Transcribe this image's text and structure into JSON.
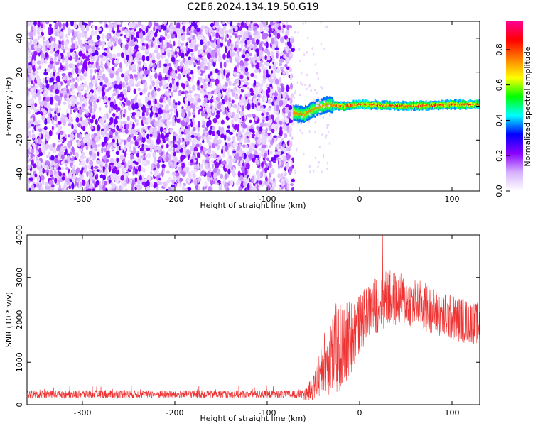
{
  "title": "C2E6.2024.134.19.50.G19",
  "chart_data": [
    {
      "type": "heatmap",
      "xlabel": "Height of straight line (km)",
      "ylabel": "Frequency (Hz)",
      "xlim": [
        -360,
        130
      ],
      "ylim": [
        -50,
        50
      ],
      "xticks": [
        -300,
        -200,
        -100,
        0,
        100
      ],
      "yticks": [
        -40,
        -20,
        0,
        20,
        40
      ],
      "colorbar": {
        "label": "Normalized spectral amplitude",
        "range": [
          0,
          0.96
        ],
        "ticks": [
          "0.0",
          "0.2",
          "0.4",
          "0.6",
          "0.8"
        ],
        "colors": [
          "#ffffff",
          "#d6b0ff",
          "#8a00ff",
          "#0000ff",
          "#00ffff",
          "#00ff00",
          "#ffff00",
          "#ff8000",
          "#ff0000",
          "#ff0090"
        ]
      },
      "regions": [
        {
          "x_range": [
            -360,
            -72
          ],
          "description_value": "noise",
          "amplitude": 0.05
        },
        {
          "x_range": [
            -72,
            130
          ],
          "frequency_track_hz": [
            [
              -72,
              -4
            ],
            [
              -60,
              -5
            ],
            [
              -48,
              -1
            ],
            [
              -35,
              1
            ],
            [
              -20,
              0
            ],
            [
              0,
              1
            ],
            [
              50,
              0
            ],
            [
              100,
              1
            ],
            [
              130,
              1
            ]
          ],
          "amplitude": 0.9
        }
      ],
      "grid": false
    },
    {
      "type": "line",
      "xlabel": "Height of straight line (km)",
      "ylabel": "SNR (10 * v/v)",
      "xlim": [
        -360,
        130
      ],
      "ylim": [
        0,
        4000
      ],
      "xticks": [
        -300,
        -200,
        -100,
        0,
        100
      ],
      "yticks": [
        0,
        1000,
        2000,
        3000,
        4000
      ],
      "color": "#ee3333",
      "envelope": {
        "x": [
          -360,
          -60,
          -50,
          -40,
          -30,
          -20,
          -10,
          0,
          10,
          20,
          30,
          40,
          50,
          60,
          70,
          80,
          90,
          100,
          110,
          120,
          130
        ],
        "mean": [
          220,
          220,
          400,
          900,
          1300,
          1300,
          1600,
          1900,
          2200,
          2400,
          2500,
          2500,
          2450,
          2400,
          2300,
          2200,
          2100,
          2050,
          2000,
          1950,
          1900
        ],
        "spread": [
          120,
          120,
          300,
          700,
          1100,
          1100,
          900,
          700,
          650,
          700,
          700,
          650,
          600,
          600,
          600,
          550,
          550,
          550,
          550,
          500,
          500
        ]
      },
      "peak": {
        "x": 25,
        "y": 4000
      },
      "grid": false
    }
  ]
}
